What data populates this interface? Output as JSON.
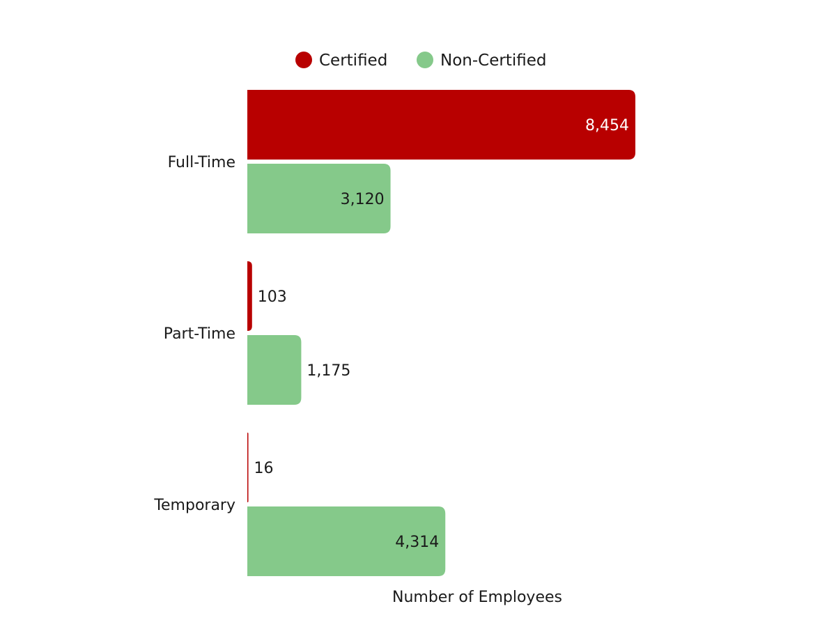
{
  "chart_data": {
    "type": "bar",
    "orientation": "horizontal",
    "categories": [
      "Full-Time",
      "Part-Time",
      "Temporary"
    ],
    "series": [
      {
        "name": "Certified",
        "color": "#b80000",
        "values": [
          8454,
          103,
          16
        ],
        "labels": [
          "8,454",
          "103",
          "16"
        ]
      },
      {
        "name": "Non-Certified",
        "color": "#85c98a",
        "values": [
          3120,
          1175,
          4314
        ],
        "labels": [
          "3,120",
          "1,175",
          "4,314"
        ]
      }
    ],
    "title": "",
    "xlabel": "Number of Employees",
    "ylabel": "",
    "xlim": [
      0,
      8454
    ],
    "grid": false,
    "legend_position": "top"
  }
}
